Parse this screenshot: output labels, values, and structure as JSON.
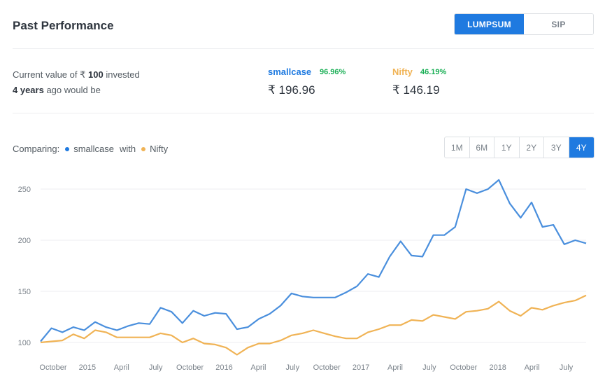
{
  "header": {
    "title": "Past Performance"
  },
  "mode_toggle": {
    "options": [
      "LUMPSUM",
      "SIP"
    ],
    "active": 0
  },
  "summary": {
    "line1_prefix": "Current value of ₹",
    "amount": "100",
    "line1_suffix": "invested",
    "period": "4 years",
    "line2_suffix": "ago would be"
  },
  "stats": {
    "smallcase": {
      "name": "smallcase",
      "pct": "96.96%",
      "value": "₹ 196.96"
    },
    "nifty": {
      "name": "Nifty",
      "pct": "46.19%",
      "value": "₹ 146.19"
    }
  },
  "comparing": {
    "label": "Comparing:",
    "a": "smallcase",
    "with": "with",
    "b": "Nifty"
  },
  "ranges": {
    "options": [
      "1M",
      "6M",
      "1Y",
      "2Y",
      "3Y",
      "4Y"
    ],
    "active": 5
  },
  "colors": {
    "accent": "#1f7ae0",
    "smallcase": "#4a8fdd",
    "nifty": "#f0b355",
    "positive": "#19af55"
  },
  "chart_data": {
    "type": "line",
    "y_ticks": [
      100,
      150,
      200,
      250
    ],
    "ylim": [
      92,
      262
    ],
    "x_ticks": [
      "October",
      "2015",
      "April",
      "July",
      "October",
      "2016",
      "April",
      "July",
      "October",
      "2017",
      "April",
      "July",
      "October",
      "2018",
      "April",
      "July"
    ],
    "grid": true,
    "legend": "none",
    "series": [
      {
        "name": "smallcase",
        "values": [
          101,
          114,
          110,
          115,
          112,
          120,
          115,
          112,
          116,
          119,
          118,
          134,
          130,
          119,
          131,
          126,
          129,
          128,
          113,
          115,
          123,
          128,
          136,
          148,
          145,
          144,
          144,
          144,
          149,
          155,
          167,
          164,
          184,
          199,
          185,
          184,
          205,
          205,
          213,
          250,
          246,
          250,
          259,
          236,
          222,
          237,
          213,
          215,
          196,
          200,
          197
        ]
      },
      {
        "name": "Nifty",
        "values": [
          100,
          101,
          102,
          108,
          104,
          112,
          110,
          105,
          105,
          105,
          105,
          109,
          107,
          100,
          104,
          99,
          98,
          95,
          88,
          95,
          99,
          99,
          102,
          107,
          109,
          112,
          109,
          106,
          104,
          104,
          110,
          113,
          117,
          117,
          122,
          121,
          127,
          125,
          123,
          130,
          131,
          133,
          140,
          131,
          126,
          134,
          132,
          136,
          139,
          141,
          146
        ]
      }
    ]
  }
}
